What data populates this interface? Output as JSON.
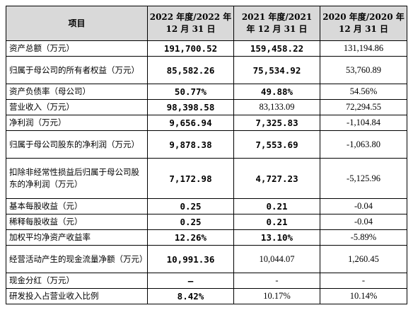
{
  "table": {
    "headers": [
      "项目",
      "2022 年度/2022 年\n12 月 31 日",
      "2021 年度/2021\n年 12 月 31 日",
      "2020 年度/2020 年\n12 月 31 日"
    ],
    "rows": [
      {
        "item": "资产总额（万元）",
        "y2022": "191,700.52",
        "y2021": "159,458.22",
        "y2020": "131,194.86",
        "bold2021": true
      },
      {
        "item": "归属于母公司的所有者权益（万元）",
        "y2022": "85,582.26",
        "y2021": "75,534.92",
        "y2020": "53,760.89",
        "bold2021": true
      },
      {
        "item": "资产负债率（母公司）",
        "y2022": "50.77%",
        "y2021": "49.88%",
        "y2020": "54.56%",
        "bold2021": true
      },
      {
        "item": "营业收入（万元）",
        "y2022": "98,398.58",
        "y2021": "83,133.09",
        "y2020": "72,294.55",
        "bold2021": false
      },
      {
        "item": "净利润（万元）",
        "y2022": "9,656.94",
        "y2021": "7,325.83",
        "y2020": "-1,104.84",
        "bold2021": true
      },
      {
        "item": "归属于母公司股东的净利润（万元）",
        "y2022": "9,878.38",
        "y2021": "7,553.69",
        "y2020": "-1,063.80",
        "bold2021": true
      },
      {
        "item": "扣除非经常性损益后归属于母公司股东的净利润（万元）",
        "y2022": "7,172.98",
        "y2021": "4,727.23",
        "y2020": "-5,125.96",
        "bold2021": true
      },
      {
        "item": "基本每股收益（元）",
        "y2022": "0.25",
        "y2021": "0.21",
        "y2020": "-0.04",
        "bold2021": true
      },
      {
        "item": "稀释每股收益（元）",
        "y2022": "0.25",
        "y2021": "0.21",
        "y2020": "-0.04",
        "bold2021": true
      },
      {
        "item": "加权平均净资产收益率",
        "y2022": "12.26%",
        "y2021": "13.10%",
        "y2020": "-5.89%",
        "bold2021": true
      },
      {
        "item": "经营活动产生的现金流量净额（万元）",
        "y2022": "10,991.36",
        "y2021": "10,044.07",
        "y2020": "1,260.45",
        "bold2021": false
      },
      {
        "item": "现金分红（万元）",
        "y2022": "–",
        "y2021": "-",
        "y2020": "-",
        "bold2021": false
      },
      {
        "item": "研发投入占营业收入比例",
        "y2022": "8.42%",
        "y2021": "10.17%",
        "y2020": "10.14%",
        "bold2021": false
      }
    ]
  }
}
